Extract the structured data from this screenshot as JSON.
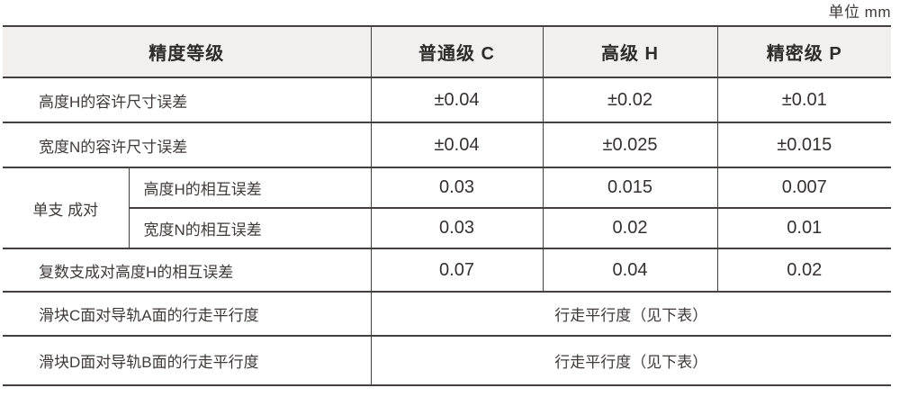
{
  "unit_label": "单位 mm",
  "colors": {
    "header_bg": "#f1f0ee",
    "border": "#454040",
    "text": "#3e3a39",
    "header_text": "#2f2b29"
  },
  "table": {
    "header": [
      "精度等级",
      "普通级 C",
      "高级 H",
      "精密级 P"
    ],
    "rows": [
      {
        "label": "高度H的容许尺寸误差",
        "values": [
          "±0.04",
          "±0.02",
          "±0.01"
        ]
      },
      {
        "label": "宽度N的容许尺寸误差",
        "values": [
          "±0.04",
          "±0.025",
          "±0.015"
        ]
      },
      {
        "group": "单支 成对",
        "label": "高度H的相互误差",
        "values": [
          "0.03",
          "0.015",
          "0.007"
        ]
      },
      {
        "label": "宽度N的相互误差",
        "values": [
          "0.03",
          "0.02",
          "0.01"
        ]
      },
      {
        "label": "复数支成对高度H的相互误差",
        "values": [
          "0.07",
          "0.04",
          "0.02"
        ]
      },
      {
        "label": "滑块C面对导轨A面的行走平行度",
        "merged_value": "行走平行度（见下表）"
      },
      {
        "label": "滑块D面对导轨B面的行走平行度",
        "merged_value": "行走平行度（见下表）"
      }
    ]
  }
}
